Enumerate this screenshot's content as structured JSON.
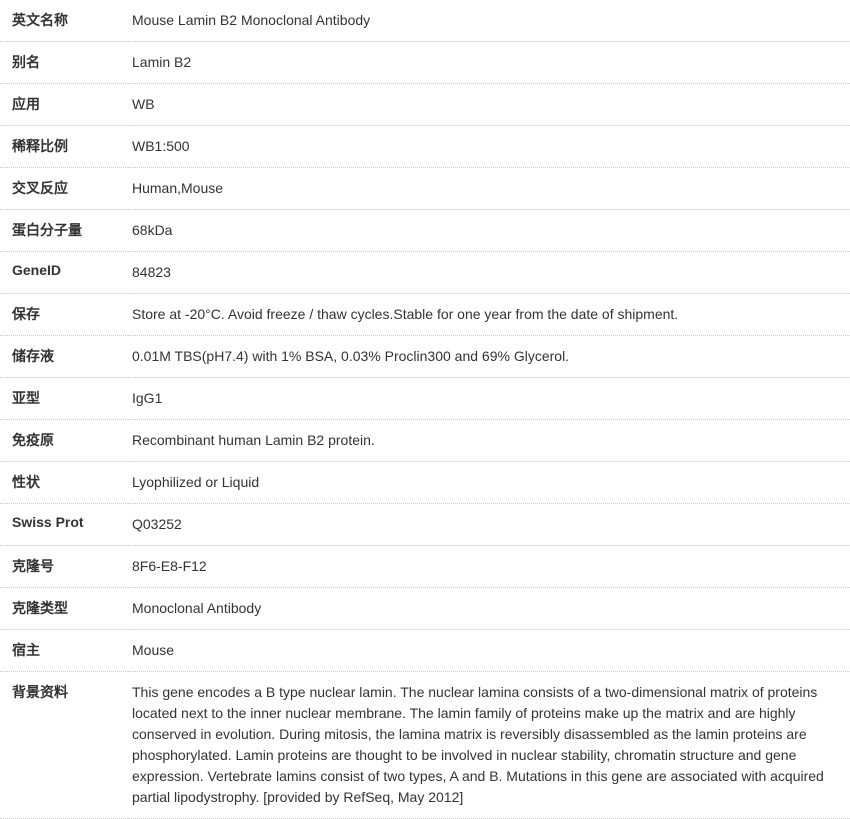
{
  "spec_table": {
    "type": "table",
    "label_column_width": 128,
    "border_color": "#cccccc",
    "border_style": "dotted",
    "background_color": "#ffffff",
    "text_color": "#333333",
    "label_font_weight": "bold",
    "font_size": 14,
    "row_padding_vertical": 10,
    "rows": [
      {
        "label": "英文名称",
        "value": "Mouse Lamin B2 Monoclonal Antibody"
      },
      {
        "label": "别名",
        "value": "Lamin B2"
      },
      {
        "label": "应用",
        "value": "WB"
      },
      {
        "label": "稀释比例",
        "value": "WB1:500"
      },
      {
        "label": "交叉反应",
        "value": "Human,Mouse"
      },
      {
        "label": "蛋白分子量",
        "value": "68kDa"
      },
      {
        "label": "GeneID",
        "value": "84823"
      },
      {
        "label": "保存",
        "value": "Store at -20°C. Avoid freeze / thaw cycles.Stable for one year from the date of shipment."
      },
      {
        "label": "储存液",
        "value": "0.01M TBS(pH7.4) with 1% BSA, 0.03% Proclin300 and 69% Glycerol."
      },
      {
        "label": "亚型",
        "value": "IgG1"
      },
      {
        "label": "免疫原",
        "value": "Recombinant human Lamin B2 protein."
      },
      {
        "label": "性状",
        "value": "Lyophilized or Liquid"
      },
      {
        "label": "Swiss Prot",
        "value": "Q03252"
      },
      {
        "label": "克隆号",
        "value": "8F6-E8-F12"
      },
      {
        "label": "克隆类型",
        "value": "Monoclonal Antibody"
      },
      {
        "label": "宿主",
        "value": "Mouse"
      },
      {
        "label": "背景资料",
        "value": "This gene encodes a B type nuclear lamin. The nuclear lamina consists of a two-dimensional matrix of proteins located next to the inner nuclear membrane. The lamin family of proteins make up the matrix and are highly conserved in evolution. During mitosis, the lamina matrix is reversibly disassembled as the lamin proteins are phosphorylated. Lamin proteins are thought to be involved in nuclear stability, chromatin structure and gene expression. Vertebrate lamins consist of two types, A and B. Mutations in this gene are associated with acquired partial lipodystrophy. [provided by RefSeq, May 2012]"
      }
    ]
  }
}
